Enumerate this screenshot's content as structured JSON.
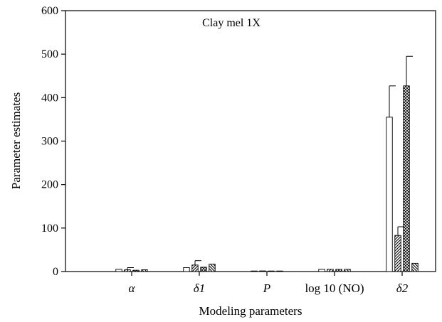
{
  "chart_data": {
    "type": "bar",
    "title": "Clay mel 1X",
    "xlabel": "Modeling parameters",
    "ylabel": "Parameter estimates",
    "ylim": [
      0,
      600
    ],
    "yticks": [
      0,
      100,
      200,
      300,
      400,
      500,
      600
    ],
    "grid": false,
    "categories": [
      "α",
      "δ1",
      "P",
      "log 10 (NO)",
      "δ2"
    ],
    "series": [
      {
        "fill": "white",
        "values": [
          5,
          9,
          1,
          5,
          355
        ],
        "errors": [
          null,
          null,
          null,
          null,
          72
        ]
      },
      {
        "fill": "diagonal",
        "values": [
          4,
          15,
          1.5,
          5,
          83
        ],
        "errors": [
          5,
          10,
          null,
          null,
          20
        ]
      },
      {
        "fill": "crosshatch",
        "values": [
          3,
          10,
          1,
          5,
          427
        ],
        "errors": [
          null,
          null,
          null,
          null,
          68
        ]
      },
      {
        "fill": "back-diagonal",
        "values": [
          4,
          17,
          0.5,
          5,
          19
        ],
        "errors": [
          null,
          null,
          null,
          null,
          null
        ]
      }
    ],
    "colors": {
      "stroke": "#000000",
      "background": "#ffffff"
    }
  }
}
